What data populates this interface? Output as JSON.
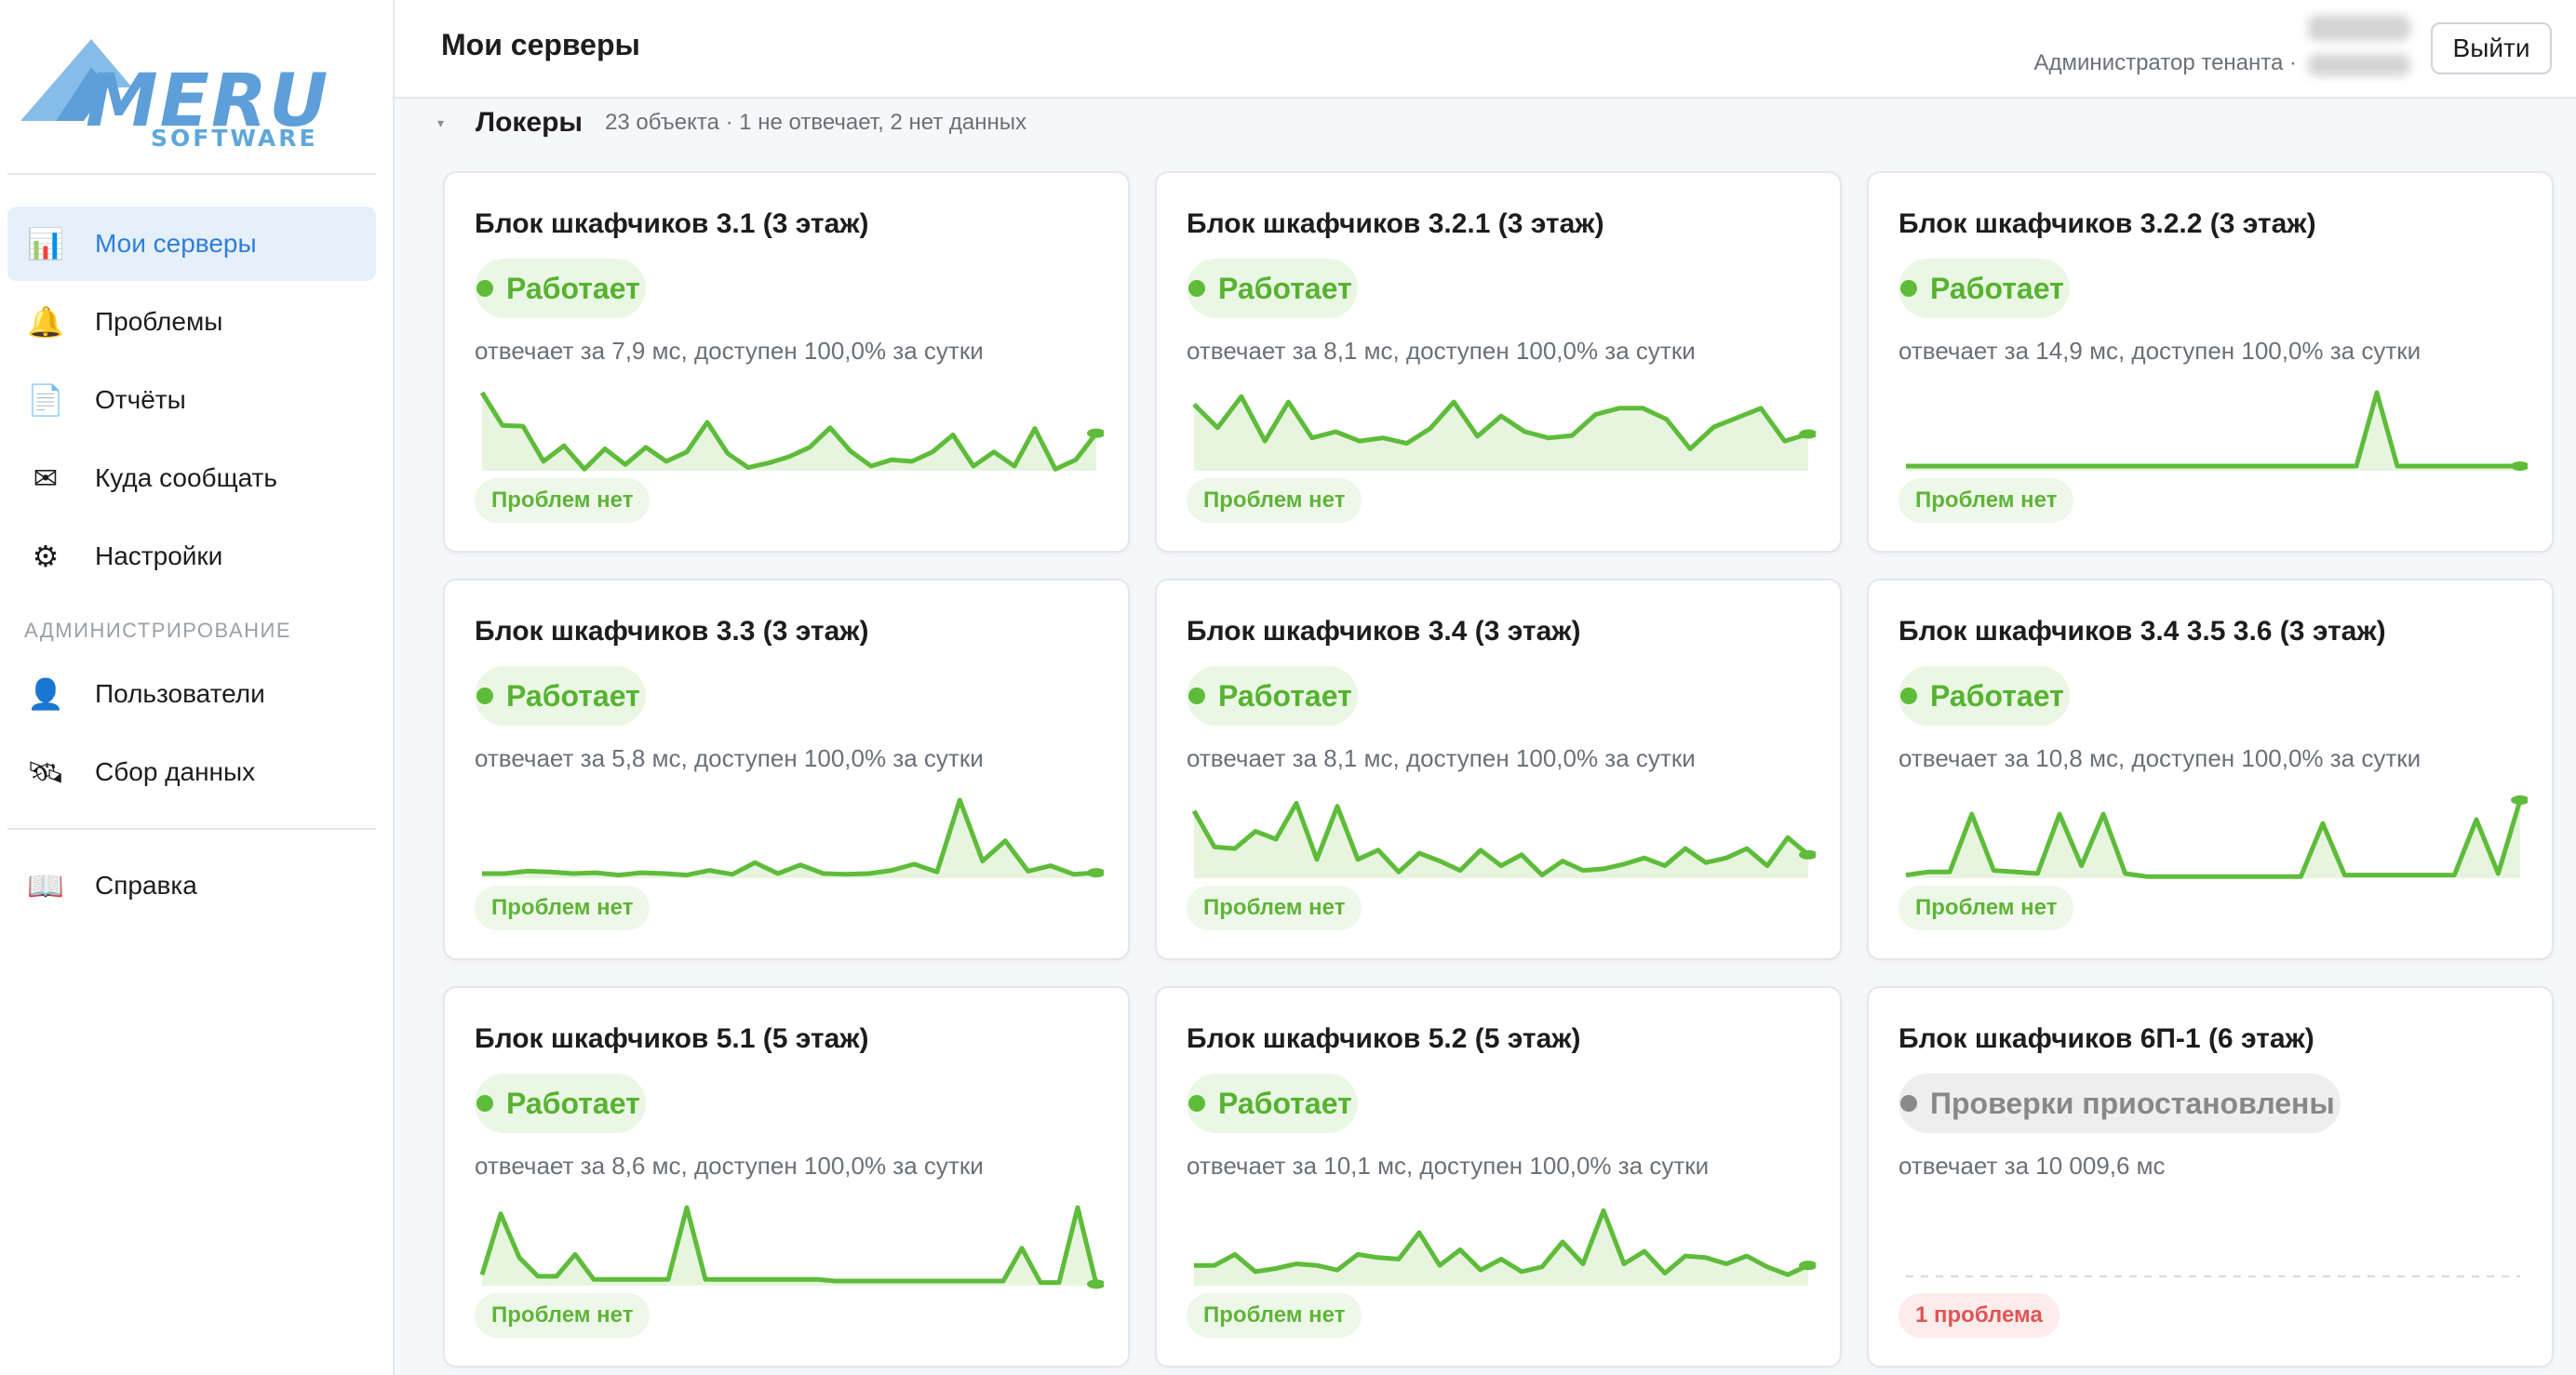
{
  "logo": {
    "word": "MERU",
    "sub": "SOFTWARE"
  },
  "header": {
    "title": "Мои серверы",
    "role": "Администратор тенанта ·",
    "logout": "Выйти"
  },
  "sidebar": {
    "items": [
      {
        "label": "Мои серверы",
        "icon": "bar-chart-icon",
        "glyph": "📊",
        "active": true
      },
      {
        "label": "Проблемы",
        "icon": "bell-icon",
        "glyph": "🔔"
      },
      {
        "label": "Отчёты",
        "icon": "document-icon",
        "glyph": "📄"
      },
      {
        "label": "Куда сообщать",
        "icon": "envelope-icon",
        "glyph": "✉"
      },
      {
        "label": "Настройки",
        "icon": "gear-icon",
        "glyph": "⚙"
      }
    ],
    "section_admin": "АДМИНИСТРИРОВАНИЕ",
    "admin_items": [
      {
        "label": "Пользователи",
        "icon": "user-icon",
        "glyph": "👤"
      },
      {
        "label": "Сбор данных",
        "icon": "satellite-icon",
        "glyph": "🛰"
      }
    ],
    "help": {
      "label": "Справка",
      "icon": "book-icon",
      "glyph": "📖"
    }
  },
  "group": {
    "title": "Локеры",
    "meta": "23 объекта · 1 не отвечает, 2 нет данных"
  },
  "colors": {
    "ok": "#5ebc3a",
    "ok_fill": "#e7f5df",
    "paused": "#8a8a8a",
    "accent": "#2f7fd6"
  },
  "cards": [
    {
      "title": "Блок шкафчиков 3.1 (3 этаж)",
      "status": "Работает",
      "state": "ok",
      "meta": "отвечает за 7,9 мс, доступен 100,0% за сутки",
      "badge": "Проблем нет",
      "spark": [
        1.0,
        0.58,
        0.57,
        0.12,
        0.32,
        0.02,
        0.28,
        0.08,
        0.3,
        0.12,
        0.24,
        0.62,
        0.22,
        0.04,
        0.1,
        0.18,
        0.3,
        0.55,
        0.25,
        0.06,
        0.14,
        0.12,
        0.24,
        0.46,
        0.06,
        0.24,
        0.06,
        0.54,
        0.02,
        0.14,
        0.48
      ]
    },
    {
      "title": "Блок шкафчиков 3.2.1 (3 этаж)",
      "status": "Работает",
      "state": "ok",
      "meta": "отвечает за 8,1 мс, доступен 100,0% за сутки",
      "badge": "Проблем нет",
      "spark": [
        0.85,
        0.55,
        0.95,
        0.38,
        0.88,
        0.42,
        0.5,
        0.38,
        0.42,
        0.35,
        0.54,
        0.88,
        0.44,
        0.7,
        0.5,
        0.42,
        0.45,
        0.72,
        0.8,
        0.8,
        0.66,
        0.28,
        0.56,
        0.68,
        0.8,
        0.38,
        0.47
      ]
    },
    {
      "title": "Блок шкафчиков 3.2.2 (3 этаж)",
      "status": "Работает",
      "state": "ok",
      "meta": "отвечает за 14,9 мс, доступен 100,0% за сутки",
      "badge": "Проблем нет",
      "spark": [
        0.06,
        0.06,
        0.06,
        0.06,
        0.06,
        0.06,
        0.06,
        0.06,
        0.06,
        0.06,
        0.06,
        0.06,
        0.06,
        0.06,
        0.06,
        0.06,
        0.06,
        0.06,
        0.06,
        0.06,
        0.06,
        0.06,
        0.06,
        1.0,
        0.06,
        0.06,
        0.06,
        0.06,
        0.06,
        0.06,
        0.06
      ]
    },
    {
      "title": "Блок шкафчиков 3.3 (3 этаж)",
      "status": "Работает",
      "state": "ok",
      "meta": "отвечает за 5,8 мс, доступен 100,0% за сутки",
      "badge": "Проблем нет",
      "spark": [
        0.06,
        0.06,
        0.09,
        0.08,
        0.06,
        0.07,
        0.04,
        0.07,
        0.06,
        0.04,
        0.1,
        0.05,
        0.2,
        0.06,
        0.17,
        0.06,
        0.05,
        0.06,
        0.1,
        0.18,
        0.08,
        1.0,
        0.22,
        0.48,
        0.09,
        0.16,
        0.05,
        0.07
      ]
    },
    {
      "title": "Блок шкафчиков 3.4 (3 этаж)",
      "status": "Работает",
      "state": "ok",
      "meta": "отвечает за 8,1 мс, доступен 100,0% за сутки",
      "badge": "Проблем нет",
      "spark": [
        0.86,
        0.4,
        0.38,
        0.6,
        0.5,
        0.96,
        0.24,
        0.92,
        0.24,
        0.36,
        0.08,
        0.32,
        0.22,
        0.1,
        0.36,
        0.16,
        0.3,
        0.04,
        0.22,
        0.1,
        0.12,
        0.18,
        0.26,
        0.16,
        0.38,
        0.2,
        0.26,
        0.38,
        0.16,
        0.52,
        0.3
      ]
    },
    {
      "title": "Блок шкафчиков 3.4 3.5 3.6 (3 этаж)",
      "status": "Работает",
      "state": "ok",
      "meta": "отвечает за 10,8 мс, доступен 100,0% за сутки",
      "badge": "Проблем нет",
      "spark": [
        0.04,
        0.08,
        0.08,
        0.82,
        0.1,
        0.08,
        0.06,
        0.82,
        0.16,
        0.82,
        0.06,
        0.02,
        0.02,
        0.02,
        0.02,
        0.02,
        0.02,
        0.02,
        0.02,
        0.7,
        0.04,
        0.04,
        0.04,
        0.04,
        0.04,
        0.04,
        0.75,
        0.06,
        1.0
      ]
    },
    {
      "title": "Блок шкафчиков 5.1 (5 этаж)",
      "status": "Работает",
      "state": "ok",
      "meta": "отвечает за 8,6 мс, доступен 100,0% за сутки",
      "badge": "Проблем нет",
      "spark": [
        0.14,
        0.92,
        0.36,
        0.12,
        0.12,
        0.4,
        0.08,
        0.08,
        0.08,
        0.08,
        0.08,
        1.0,
        0.08,
        0.08,
        0.08,
        0.08,
        0.08,
        0.08,
        0.08,
        0.06,
        0.06,
        0.06,
        0.06,
        0.06,
        0.06,
        0.06,
        0.06,
        0.06,
        0.06,
        0.48,
        0.04,
        0.04,
        1.0,
        0.02
      ]
    },
    {
      "title": "Блок шкафчиков 5.2 (5 этаж)",
      "status": "Работает",
      "state": "ok",
      "meta": "отвечает за 10,1 мс, доступен 100,0% за сутки",
      "badge": "Проблем нет",
      "spark": [
        0.26,
        0.26,
        0.4,
        0.18,
        0.22,
        0.28,
        0.26,
        0.2,
        0.4,
        0.36,
        0.34,
        0.68,
        0.26,
        0.46,
        0.2,
        0.34,
        0.18,
        0.24,
        0.56,
        0.28,
        0.96,
        0.28,
        0.44,
        0.16,
        0.38,
        0.36,
        0.28,
        0.38,
        0.24,
        0.14,
        0.26
      ]
    },
    {
      "title": "Блок шкафчиков 6П-1 (6 этаж)",
      "status": "Проверки приостановлены",
      "state": "paused",
      "meta": "отвечает за 10 009,6 мс",
      "badge": "1 проблема",
      "badge_type": "problem",
      "spark": []
    }
  ]
}
